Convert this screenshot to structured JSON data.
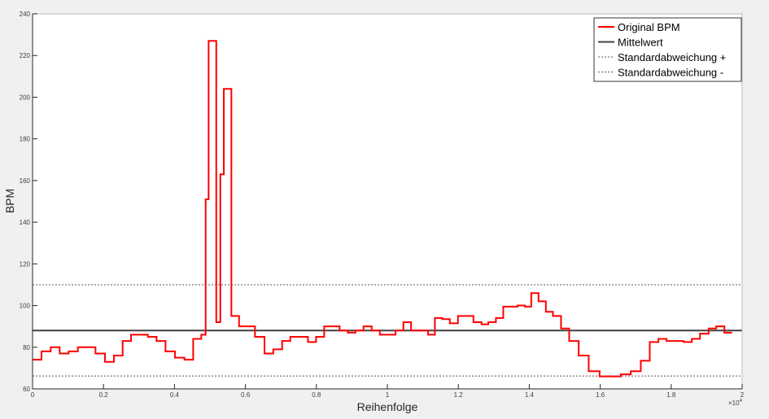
{
  "chart_data": {
    "type": "line",
    "title": "",
    "xlabel": "Reihenfolge",
    "ylabel": "BPM",
    "x_exponent_label": "×10",
    "x_exponent_power": "4",
    "xlim": [
      0,
      20000
    ],
    "ylim": [
      60,
      240
    ],
    "x_ticks": [
      0,
      2000,
      4000,
      6000,
      8000,
      10000,
      12000,
      14000,
      16000,
      18000,
      20000
    ],
    "x_tick_labels": [
      "0",
      "0.2",
      "0.4",
      "0.6",
      "0.8",
      "1",
      "1.2",
      "1.4",
      "1.6",
      "1.8",
      "2"
    ],
    "y_ticks": [
      60,
      80,
      100,
      120,
      140,
      160,
      180,
      200,
      220,
      240
    ],
    "y_tick_labels": [
      "60",
      "80",
      "100",
      "120",
      "140",
      "160",
      "180",
      "200",
      "220",
      "240"
    ],
    "grid": false,
    "legend_position": "top-right",
    "series": [
      {
        "name": "Original BPM",
        "color": "#ff0000",
        "style": "stairs",
        "x": [
          0,
          252,
          512,
          765,
          1017,
          1277,
          1774,
          2042,
          2294,
          2539,
          2776,
          3250,
          3495,
          3747,
          4015,
          4282,
          4527,
          4756,
          4879,
          4962,
          5178,
          5292,
          5391,
          5604,
          5820,
          6270,
          6538,
          6784,
          7035,
          7265,
          7762,
          7991,
          8220,
          8656,
          8886,
          9100,
          9329,
          9558,
          9788,
          10231,
          10453,
          10667,
          11149,
          11340,
          11546,
          11761,
          11990,
          12426,
          12655,
          12846,
          13060,
          13267,
          13672,
          13879,
          14055,
          14261,
          14468,
          14666,
          14895,
          15125,
          15393,
          15675,
          15982,
          16579,
          16861,
          17143,
          17396,
          17641,
          17870,
          18352,
          18581,
          18811,
          19056,
          19270,
          19499
        ],
        "x_end": 19713,
        "y": [
          74,
          78,
          80,
          77,
          78,
          80,
          77,
          73,
          76,
          83,
          86,
          85,
          83,
          78,
          75,
          74,
          84,
          86,
          151,
          227,
          92,
          163,
          204,
          95,
          90,
          85,
          77,
          79,
          83,
          85,
          82.5,
          85,
          90,
          88,
          87,
          88,
          90,
          88,
          86,
          88,
          92,
          88,
          86,
          94,
          93.5,
          91.5,
          95,
          92,
          91,
          92,
          94,
          99.5,
          100,
          99.5,
          106,
          102,
          97,
          95,
          89,
          83,
          76,
          68.5,
          66,
          67,
          68.5,
          73.5,
          82.5,
          84,
          83,
          82.5,
          84,
          86.5,
          89,
          90,
          87
        ]
      },
      {
        "name": "Mittelwert",
        "color": "#404040",
        "style": "solid",
        "value": 88
      },
      {
        "name": "Standardabweichung +",
        "color": "#555555",
        "style": "dotted",
        "value": 110
      },
      {
        "name": "Standardabweichung -",
        "color": "#555555",
        "style": "dotted",
        "value": 66.2
      }
    ]
  }
}
